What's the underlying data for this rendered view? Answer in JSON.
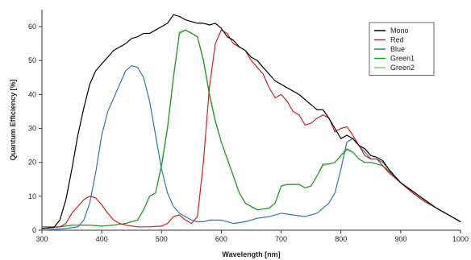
{
  "chart_data": {
    "type": "line",
    "title": "",
    "xlabel": "Wavelength [nm]",
    "ylabel": "Quantum Efficiency [%]",
    "xlim": [
      300,
      1000
    ],
    "ylim": [
      0,
      65
    ],
    "xticks": [
      300,
      400,
      500,
      600,
      700,
      800,
      900,
      1000
    ],
    "yticks": [
      0,
      10,
      20,
      30,
      40,
      50,
      60
    ],
    "grid": false,
    "legend_position": "top-right",
    "series": [
      {
        "name": "Mono",
        "color": "#000000",
        "points": [
          [
            300,
            0.5
          ],
          [
            320,
            0.8
          ],
          [
            330,
            3
          ],
          [
            340,
            9
          ],
          [
            350,
            18
          ],
          [
            360,
            28
          ],
          [
            370,
            36
          ],
          [
            380,
            43
          ],
          [
            390,
            47
          ],
          [
            400,
            49
          ],
          [
            410,
            51
          ],
          [
            420,
            53
          ],
          [
            430,
            54
          ],
          [
            440,
            55
          ],
          [
            450,
            56.5
          ],
          [
            460,
            57
          ],
          [
            470,
            58
          ],
          [
            480,
            58
          ],
          [
            490,
            59
          ],
          [
            500,
            60
          ],
          [
            510,
            61
          ],
          [
            520,
            63.5
          ],
          [
            530,
            63
          ],
          [
            540,
            62
          ],
          [
            550,
            61.5
          ],
          [
            560,
            61
          ],
          [
            570,
            61
          ],
          [
            580,
            60.5
          ],
          [
            590,
            61
          ],
          [
            600,
            59.5
          ],
          [
            610,
            57
          ],
          [
            620,
            56
          ],
          [
            630,
            54
          ],
          [
            640,
            53
          ],
          [
            650,
            51
          ],
          [
            660,
            50
          ],
          [
            670,
            48
          ],
          [
            680,
            46
          ],
          [
            690,
            44
          ],
          [
            700,
            43
          ],
          [
            710,
            42
          ],
          [
            720,
            41
          ],
          [
            730,
            40
          ],
          [
            740,
            38.5
          ],
          [
            750,
            37
          ],
          [
            760,
            35.5
          ],
          [
            770,
            35.5
          ],
          [
            780,
            33
          ],
          [
            790,
            30
          ],
          [
            800,
            27
          ],
          [
            810,
            28
          ],
          [
            820,
            27
          ],
          [
            830,
            25
          ],
          [
            840,
            24
          ],
          [
            850,
            22
          ],
          [
            860,
            21.5
          ],
          [
            870,
            20.5
          ],
          [
            880,
            18
          ],
          [
            890,
            16
          ],
          [
            900,
            14
          ],
          [
            920,
            11.5
          ],
          [
            940,
            9
          ],
          [
            960,
            6.5
          ],
          [
            980,
            4.5
          ],
          [
            1000,
            2.5
          ]
        ]
      },
      {
        "name": "Red",
        "color": "#cc2222",
        "points": [
          [
            300,
            0.5
          ],
          [
            330,
            1
          ],
          [
            340,
            2
          ],
          [
            350,
            5
          ],
          [
            360,
            7
          ],
          [
            370,
            9
          ],
          [
            380,
            10
          ],
          [
            390,
            9.5
          ],
          [
            400,
            7.5
          ],
          [
            410,
            5
          ],
          [
            420,
            3
          ],
          [
            430,
            2
          ],
          [
            440,
            1.5
          ],
          [
            460,
            1
          ],
          [
            480,
            1
          ],
          [
            500,
            1.2
          ],
          [
            510,
            2
          ],
          [
            520,
            4
          ],
          [
            530,
            4.5
          ],
          [
            540,
            3
          ],
          [
            550,
            2
          ],
          [
            560,
            4
          ],
          [
            570,
            20
          ],
          [
            580,
            42
          ],
          [
            590,
            55
          ],
          [
            600,
            59
          ],
          [
            610,
            58
          ],
          [
            620,
            55
          ],
          [
            630,
            54
          ],
          [
            640,
            53
          ],
          [
            650,
            50
          ],
          [
            660,
            48
          ],
          [
            670,
            46
          ],
          [
            680,
            42
          ],
          [
            690,
            39
          ],
          [
            700,
            40
          ],
          [
            710,
            38
          ],
          [
            720,
            35
          ],
          [
            730,
            34
          ],
          [
            740,
            31
          ],
          [
            750,
            31.5
          ],
          [
            760,
            33
          ],
          [
            770,
            34
          ],
          [
            780,
            33
          ],
          [
            790,
            29
          ],
          [
            800,
            30
          ],
          [
            810,
            30.5
          ],
          [
            820,
            28
          ],
          [
            830,
            25
          ],
          [
            840,
            22
          ],
          [
            850,
            21
          ],
          [
            860,
            21
          ],
          [
            870,
            19
          ],
          [
            880,
            17
          ],
          [
            890,
            15.5
          ],
          [
            900,
            14
          ],
          [
            920,
            11
          ],
          [
            940,
            8.5
          ],
          [
            960,
            6.5
          ],
          [
            980,
            4.5
          ],
          [
            1000,
            2.5
          ]
        ]
      },
      {
        "name": "Blue",
        "color": "#3377aa",
        "points": [
          [
            300,
            0
          ],
          [
            340,
            0.5
          ],
          [
            360,
            1
          ],
          [
            370,
            3
          ],
          [
            380,
            8
          ],
          [
            390,
            17
          ],
          [
            400,
            28
          ],
          [
            410,
            35
          ],
          [
            420,
            39
          ],
          [
            430,
            43
          ],
          [
            440,
            47
          ],
          [
            450,
            48.5
          ],
          [
            460,
            48
          ],
          [
            470,
            45
          ],
          [
            480,
            38
          ],
          [
            490,
            28
          ],
          [
            500,
            18
          ],
          [
            510,
            11
          ],
          [
            520,
            7
          ],
          [
            530,
            5
          ],
          [
            540,
            4
          ],
          [
            550,
            3
          ],
          [
            560,
            2.5
          ],
          [
            570,
            2.5
          ],
          [
            580,
            3
          ],
          [
            590,
            3
          ],
          [
            600,
            3
          ],
          [
            620,
            2
          ],
          [
            640,
            2.5
          ],
          [
            660,
            3.5
          ],
          [
            680,
            4
          ],
          [
            700,
            5
          ],
          [
            720,
            4.5
          ],
          [
            740,
            4
          ],
          [
            760,
            5
          ],
          [
            780,
            8
          ],
          [
            790,
            11
          ],
          [
            800,
            18
          ],
          [
            810,
            26
          ],
          [
            820,
            27
          ],
          [
            830,
            25
          ],
          [
            840,
            23
          ],
          [
            850,
            21
          ],
          [
            860,
            21
          ],
          [
            870,
            20
          ],
          [
            880,
            18
          ],
          [
            890,
            15.5
          ],
          [
            900,
            14
          ],
          [
            920,
            11
          ],
          [
            940,
            8.5
          ],
          [
            960,
            6.5
          ],
          [
            980,
            4.5
          ],
          [
            1000,
            2.5
          ]
        ]
      },
      {
        "name": "Green1",
        "color": "#229922",
        "points": [
          [
            300,
            1
          ],
          [
            330,
            1
          ],
          [
            350,
            1.5
          ],
          [
            380,
            1.5
          ],
          [
            400,
            1.2
          ],
          [
            420,
            1.5
          ],
          [
            440,
            2
          ],
          [
            460,
            3
          ],
          [
            470,
            6
          ],
          [
            480,
            10
          ],
          [
            490,
            11
          ],
          [
            500,
            19
          ],
          [
            510,
            30
          ],
          [
            520,
            45
          ],
          [
            530,
            58
          ],
          [
            540,
            59
          ],
          [
            550,
            58
          ],
          [
            560,
            57
          ],
          [
            570,
            50
          ],
          [
            580,
            40
          ],
          [
            590,
            32
          ],
          [
            600,
            26
          ],
          [
            610,
            21
          ],
          [
            620,
            16
          ],
          [
            630,
            11
          ],
          [
            640,
            8
          ],
          [
            660,
            6
          ],
          [
            680,
            6.5
          ],
          [
            690,
            8
          ],
          [
            700,
            13
          ],
          [
            710,
            13.5
          ],
          [
            720,
            13.5
          ],
          [
            730,
            13.5
          ],
          [
            740,
            12.5
          ],
          [
            750,
            13
          ],
          [
            760,
            16
          ],
          [
            770,
            19.5
          ],
          [
            780,
            19.5
          ],
          [
            790,
            20
          ],
          [
            800,
            22
          ],
          [
            810,
            24
          ],
          [
            820,
            23
          ],
          [
            830,
            21
          ],
          [
            840,
            20
          ],
          [
            850,
            20
          ],
          [
            860,
            19.5
          ],
          [
            870,
            19
          ],
          [
            880,
            17.5
          ],
          [
            890,
            15.5
          ],
          [
            900,
            14
          ],
          [
            920,
            11
          ],
          [
            940,
            8.5
          ],
          [
            960,
            6.5
          ],
          [
            980,
            4.5
          ],
          [
            1000,
            2.5
          ]
        ]
      },
      {
        "name": "Green2",
        "color": "#88cc66",
        "points": [
          [
            300,
            1
          ],
          [
            330,
            1
          ],
          [
            350,
            1.5
          ],
          [
            380,
            1.5
          ],
          [
            400,
            1.2
          ],
          [
            420,
            1.5
          ],
          [
            440,
            2
          ],
          [
            460,
            3
          ],
          [
            470,
            6
          ],
          [
            480,
            10
          ],
          [
            490,
            11
          ],
          [
            500,
            19.5
          ],
          [
            510,
            30.5
          ],
          [
            520,
            45.5
          ],
          [
            530,
            58.5
          ],
          [
            540,
            59
          ],
          [
            550,
            58.2
          ],
          [
            560,
            57
          ],
          [
            570,
            50.5
          ],
          [
            580,
            40.5
          ],
          [
            590,
            32.5
          ],
          [
            600,
            26
          ],
          [
            610,
            21
          ],
          [
            620,
            16
          ],
          [
            630,
            11
          ],
          [
            640,
            8
          ],
          [
            660,
            6
          ],
          [
            680,
            6.5
          ],
          [
            690,
            8
          ],
          [
            700,
            13
          ],
          [
            710,
            13.5
          ],
          [
            720,
            13.5
          ],
          [
            730,
            13.5
          ],
          [
            740,
            12.5
          ],
          [
            750,
            13
          ],
          [
            760,
            16
          ],
          [
            770,
            19
          ],
          [
            780,
            19.5
          ],
          [
            790,
            20
          ],
          [
            800,
            22
          ],
          [
            810,
            23.5
          ],
          [
            820,
            23
          ],
          [
            830,
            21
          ],
          [
            840,
            20
          ],
          [
            850,
            20
          ],
          [
            860,
            19.5
          ],
          [
            870,
            19
          ],
          [
            880,
            17.5
          ],
          [
            890,
            15.5
          ],
          [
            900,
            14
          ],
          [
            920,
            11
          ],
          [
            940,
            8.5
          ],
          [
            960,
            6.5
          ],
          [
            980,
            4.5
          ],
          [
            1000,
            2.5
          ]
        ]
      }
    ]
  }
}
